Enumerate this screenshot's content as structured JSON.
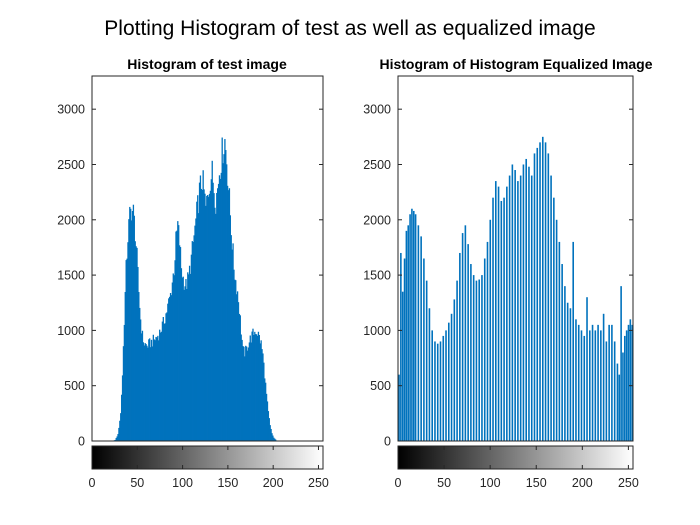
{
  "figure": {
    "suptitle": "Plotting Histogram of test as well as equalized image"
  },
  "colors": {
    "bar": "#0072BD",
    "axis": "#262626",
    "background": "#ffffff"
  },
  "chart_data": [
    {
      "type": "bar",
      "title": "Histogram of test image",
      "xlabel": "",
      "ylabel": "",
      "xlim": [
        0,
        255
      ],
      "ylim": [
        0,
        3300
      ],
      "yticks": [
        0,
        500,
        1000,
        1500,
        2000,
        2500,
        3000
      ],
      "xticks": [
        0,
        50,
        100,
        150,
        200,
        250
      ],
      "grid": false,
      "colorbar": "grayscale 0-255 below x-axis",
      "profile": [
        [
          0,
          0
        ],
        [
          22,
          0
        ],
        [
          25,
          10
        ],
        [
          28,
          60
        ],
        [
          31,
          250
        ],
        [
          33,
          600
        ],
        [
          35,
          1100
        ],
        [
          37,
          1550
        ],
        [
          39,
          1850
        ],
        [
          41,
          2030
        ],
        [
          43,
          2100
        ],
        [
          45,
          2060
        ],
        [
          47,
          1900
        ],
        [
          49,
          1650
        ],
        [
          51,
          1350
        ],
        [
          53,
          1100
        ],
        [
          55,
          950
        ],
        [
          57,
          880
        ],
        [
          60,
          860
        ],
        [
          63,
          880
        ],
        [
          66,
          900
        ],
        [
          70,
          930
        ],
        [
          74,
          980
        ],
        [
          78,
          1060
        ],
        [
          82,
          1180
        ],
        [
          86,
          1320
        ],
        [
          90,
          1560
        ],
        [
          92,
          1800
        ],
        [
          94,
          1950
        ],
        [
          96,
          1800
        ],
        [
          98,
          1570
        ],
        [
          100,
          1470
        ],
        [
          103,
          1400
        ],
        [
          106,
          1480
        ],
        [
          109,
          1650
        ],
        [
          112,
          1850
        ],
        [
          115,
          2050
        ],
        [
          118,
          2250
        ],
        [
          121,
          2370
        ],
        [
          123,
          2250
        ],
        [
          125,
          2100
        ],
        [
          127,
          2200
        ],
        [
          130,
          2380
        ],
        [
          132,
          2420
        ],
        [
          134,
          2300
        ],
        [
          136,
          2180
        ],
        [
          138,
          2280
        ],
        [
          140,
          2450
        ],
        [
          142,
          2550
        ],
        [
          144,
          2650
        ],
        [
          146,
          2720
        ],
        [
          148,
          2550
        ],
        [
          150,
          2300
        ],
        [
          152,
          2050
        ],
        [
          154,
          1800
        ],
        [
          156,
          1580
        ],
        [
          158,
          1450
        ],
        [
          160,
          1350
        ],
        [
          162,
          1200
        ],
        [
          164,
          1000
        ],
        [
          166,
          820
        ],
        [
          168,
          800
        ],
        [
          170,
          830
        ],
        [
          172,
          880
        ],
        [
          174,
          920
        ],
        [
          176,
          950
        ],
        [
          178,
          980
        ],
        [
          180,
          1000
        ],
        [
          182,
          980
        ],
        [
          184,
          940
        ],
        [
          186,
          880
        ],
        [
          188,
          780
        ],
        [
          190,
          600
        ],
        [
          192,
          420
        ],
        [
          194,
          260
        ],
        [
          196,
          140
        ],
        [
          198,
          70
        ],
        [
          200,
          30
        ],
        [
          203,
          5
        ],
        [
          205,
          0
        ]
      ]
    },
    {
      "type": "bar",
      "title": "Histogram of Histogram Equalized Image",
      "xlabel": "",
      "ylabel": "",
      "xlim": [
        0,
        255
      ],
      "ylim": [
        0,
        3300
      ],
      "yticks": [
        0,
        500,
        1000,
        1500,
        2000,
        2500,
        3000
      ],
      "xticks": [
        0,
        50,
        100,
        150,
        200,
        250
      ],
      "grid": false,
      "colorbar": "grayscale 0-255 below x-axis",
      "spikes": [
        [
          1,
          600
        ],
        [
          3,
          1700
        ],
        [
          5,
          1350
        ],
        [
          7,
          1650
        ],
        [
          9,
          1900
        ],
        [
          11,
          1950
        ],
        [
          13,
          2050
        ],
        [
          15,
          2100
        ],
        [
          17,
          2080
        ],
        [
          19,
          2050
        ],
        [
          22,
          1950
        ],
        [
          25,
          1850
        ],
        [
          28,
          1650
        ],
        [
          31,
          1450
        ],
        [
          34,
          1200
        ],
        [
          37,
          1000
        ],
        [
          40,
          900
        ],
        [
          43,
          880
        ],
        [
          46,
          900
        ],
        [
          49,
          950
        ],
        [
          52,
          1000
        ],
        [
          55,
          1070
        ],
        [
          58,
          1150
        ],
        [
          61,
          1280
        ],
        [
          64,
          1450
        ],
        [
          67,
          1700
        ],
        [
          70,
          1880
        ],
        [
          73,
          1950
        ],
        [
          76,
          1780
        ],
        [
          79,
          1600
        ],
        [
          82,
          1500
        ],
        [
          85,
          1450
        ],
        [
          88,
          1460
        ],
        [
          91,
          1500
        ],
        [
          94,
          1650
        ],
        [
          97,
          1800
        ],
        [
          100,
          2000
        ],
        [
          103,
          2200
        ],
        [
          106,
          2350
        ],
        [
          109,
          2300
        ],
        [
          112,
          2170
        ],
        [
          115,
          2200
        ],
        [
          118,
          2300
        ],
        [
          121,
          2400
        ],
        [
          124,
          2500
        ],
        [
          127,
          2450
        ],
        [
          130,
          2350
        ],
        [
          133,
          2400
        ],
        [
          136,
          2500
        ],
        [
          139,
          2550
        ],
        [
          142,
          2480
        ],
        [
          145,
          2400
        ],
        [
          148,
          2600
        ],
        [
          151,
          2650
        ],
        [
          154,
          2700
        ],
        [
          157,
          2750
        ],
        [
          160,
          2700
        ],
        [
          163,
          2600
        ],
        [
          166,
          2400
        ],
        [
          169,
          2200
        ],
        [
          172,
          2000
        ],
        [
          175,
          1800
        ],
        [
          178,
          1600
        ],
        [
          181,
          1400
        ],
        [
          184,
          1250
        ],
        [
          187,
          1200
        ],
        [
          190,
          1800
        ],
        [
          193,
          1100
        ],
        [
          196,
          1050
        ],
        [
          199,
          1000
        ],
        [
          202,
          950
        ],
        [
          205,
          1300
        ],
        [
          208,
          1000
        ],
        [
          211,
          1050
        ],
        [
          214,
          1000
        ],
        [
          217,
          1050
        ],
        [
          220,
          1000
        ],
        [
          223,
          1150
        ],
        [
          226,
          900
        ],
        [
          229,
          1050
        ],
        [
          232,
          1050
        ],
        [
          235,
          900
        ],
        [
          238,
          700
        ],
        [
          240,
          600
        ],
        [
          242,
          1400
        ],
        [
          244,
          800
        ],
        [
          246,
          950
        ],
        [
          248,
          1000
        ],
        [
          250,
          1050
        ],
        [
          252,
          1100
        ],
        [
          254,
          1050
        ]
      ]
    }
  ]
}
